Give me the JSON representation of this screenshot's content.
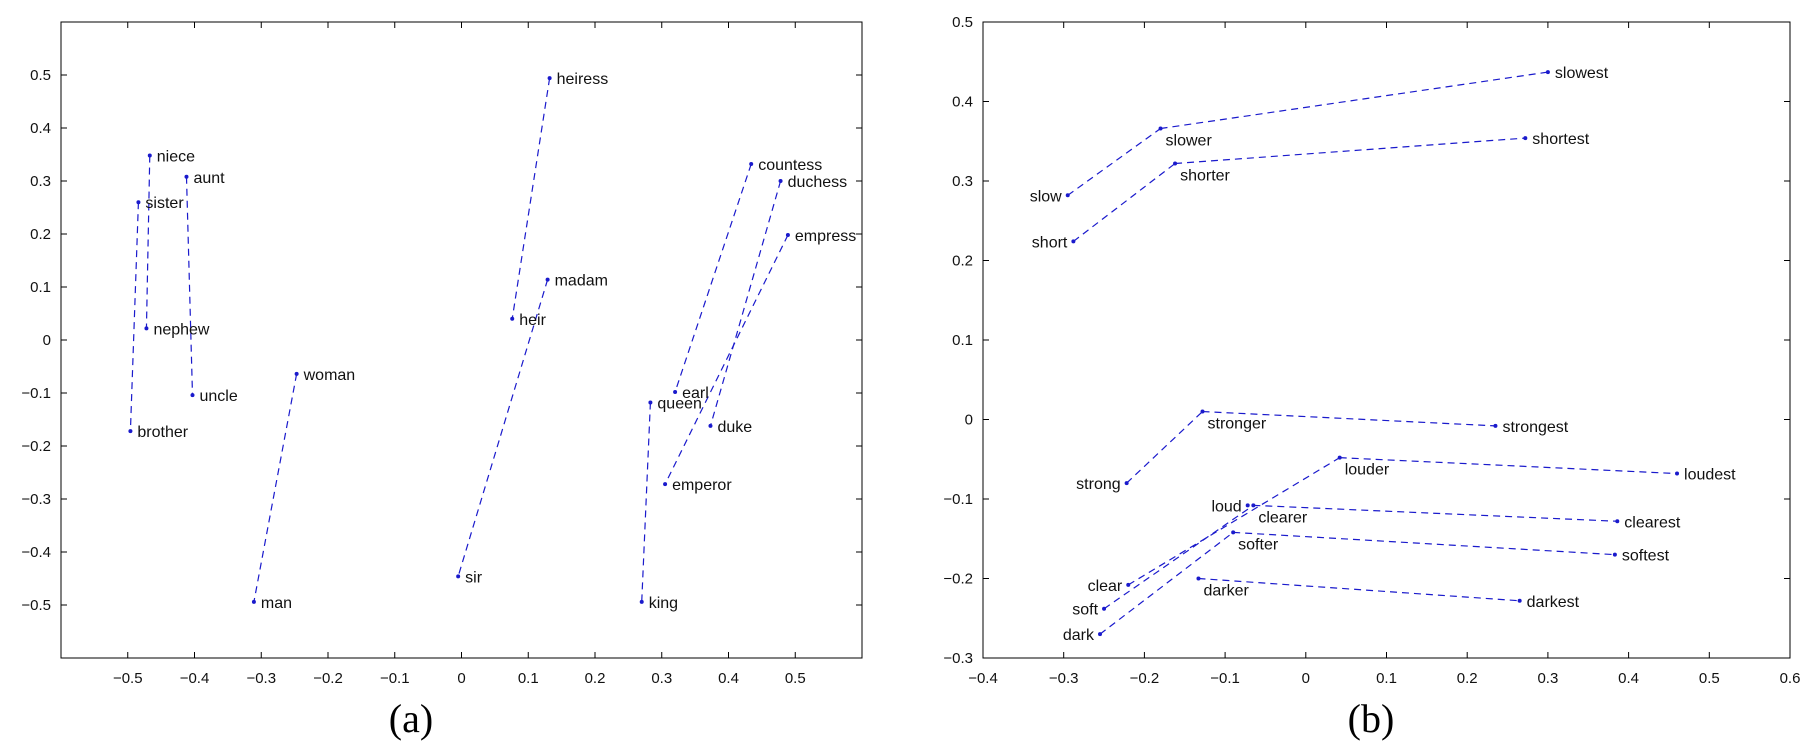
{
  "chart_data": [
    {
      "type": "scatter",
      "caption": "(a)",
      "xlim": [
        -0.6,
        0.6
      ],
      "ylim": [
        -0.6,
        0.6
      ],
      "xticks": [
        -0.5,
        -0.4,
        -0.3,
        -0.2,
        -0.1,
        0,
        0.1,
        0.2,
        0.3,
        0.4,
        0.5
      ],
      "xtick_labels": [
        "−0.5",
        "−0.4",
        "−0.3",
        "−0.2",
        "−0.1",
        "0",
        "0.1",
        "0.2",
        "0.3",
        "0.4",
        "0.5"
      ],
      "yticks": [
        -0.5,
        -0.4,
        -0.3,
        -0.2,
        -0.1,
        0,
        0.1,
        0.2,
        0.3,
        0.4,
        0.5
      ],
      "ytick_labels": [
        "−0.5",
        "−0.4",
        "−0.3",
        "−0.2",
        "−0.1",
        "0",
        "0.1",
        "0.2",
        "0.3",
        "0.4",
        "0.5"
      ],
      "points": [
        {
          "label": "niece",
          "x": -0.467,
          "y": 0.348,
          "pos": "right"
        },
        {
          "label": "aunt",
          "x": -0.412,
          "y": 0.308,
          "pos": "right"
        },
        {
          "label": "sister",
          "x": -0.484,
          "y": 0.26,
          "pos": "right"
        },
        {
          "label": "nephew",
          "x": -0.472,
          "y": 0.022,
          "pos": "right"
        },
        {
          "label": "uncle",
          "x": -0.403,
          "y": -0.104,
          "pos": "right"
        },
        {
          "label": "brother",
          "x": -0.496,
          "y": -0.172,
          "pos": "right"
        },
        {
          "label": "woman",
          "x": -0.247,
          "y": -0.064,
          "pos": "right"
        },
        {
          "label": "man",
          "x": -0.311,
          "y": -0.494,
          "pos": "right"
        },
        {
          "label": "heiress",
          "x": 0.132,
          "y": 0.494,
          "pos": "right"
        },
        {
          "label": "madam",
          "x": 0.129,
          "y": 0.114,
          "pos": "right"
        },
        {
          "label": "heir",
          "x": 0.076,
          "y": 0.04,
          "pos": "right"
        },
        {
          "label": "sir",
          "x": -0.005,
          "y": -0.446,
          "pos": "right"
        },
        {
          "label": "countess",
          "x": 0.434,
          "y": 0.332,
          "pos": "right"
        },
        {
          "label": "duchess",
          "x": 0.478,
          "y": 0.3,
          "pos": "right"
        },
        {
          "label": "empress",
          "x": 0.489,
          "y": 0.198,
          "pos": "right"
        },
        {
          "label": "earl",
          "x": 0.32,
          "y": -0.098,
          "pos": "right"
        },
        {
          "label": "queen",
          "x": 0.283,
          "y": -0.118,
          "pos": "right"
        },
        {
          "label": "duke",
          "x": 0.373,
          "y": -0.162,
          "pos": "right"
        },
        {
          "label": "emperor",
          "x": 0.305,
          "y": -0.272,
          "pos": "right"
        },
        {
          "label": "king",
          "x": 0.27,
          "y": -0.494,
          "pos": "right"
        }
      ],
      "segments": [
        [
          "niece",
          "nephew"
        ],
        [
          "aunt",
          "uncle"
        ],
        [
          "sister",
          "brother"
        ],
        [
          "woman",
          "man"
        ],
        [
          "heiress",
          "heir"
        ],
        [
          "madam",
          "sir"
        ],
        [
          "countess",
          "earl"
        ],
        [
          "duchess",
          "duke"
        ],
        [
          "empress",
          "emperor"
        ],
        [
          "queen",
          "king"
        ]
      ],
      "color": "#1a1acc"
    },
    {
      "type": "scatter",
      "caption": "(b)",
      "xlim": [
        -0.4,
        0.6
      ],
      "ylim": [
        -0.3,
        0.5
      ],
      "xticks": [
        -0.4,
        -0.3,
        -0.2,
        -0.1,
        0,
        0.1,
        0.2,
        0.3,
        0.4,
        0.5,
        0.6
      ],
      "xtick_labels": [
        "−0.4",
        "−0.3",
        "−0.2",
        "−0.1",
        "0",
        "0.1",
        "0.2",
        "0.3",
        "0.4",
        "0.5",
        "0.6"
      ],
      "yticks": [
        -0.3,
        -0.2,
        -0.1,
        0,
        0.1,
        0.2,
        0.3,
        0.4,
        0.5
      ],
      "ytick_labels": [
        "−0.3",
        "−0.2",
        "−0.1",
        "0",
        "0.1",
        "0.2",
        "0.3",
        "0.4",
        "0.5"
      ],
      "points": [
        {
          "label": "slow",
          "x": -0.295,
          "y": 0.282,
          "pos": "left"
        },
        {
          "label": "slower",
          "x": -0.18,
          "y": 0.366,
          "pos": "below-right"
        },
        {
          "label": "slowest",
          "x": 0.3,
          "y": 0.437,
          "pos": "right"
        },
        {
          "label": "short",
          "x": -0.288,
          "y": 0.224,
          "pos": "left"
        },
        {
          "label": "shorter",
          "x": -0.162,
          "y": 0.322,
          "pos": "below-right"
        },
        {
          "label": "shortest",
          "x": 0.272,
          "y": 0.354,
          "pos": "right"
        },
        {
          "label": "strong",
          "x": -0.222,
          "y": -0.08,
          "pos": "left"
        },
        {
          "label": "stronger",
          "x": -0.128,
          "y": 0.01,
          "pos": "below-right"
        },
        {
          "label": "strongest",
          "x": 0.235,
          "y": -0.008,
          "pos": "right"
        },
        {
          "label": "loud",
          "x": -0.072,
          "y": -0.108,
          "pos": "left"
        },
        {
          "label": "louder",
          "x": 0.042,
          "y": -0.048,
          "pos": "below-right"
        },
        {
          "label": "loudest",
          "x": 0.46,
          "y": -0.068,
          "pos": "right"
        },
        {
          "label": "clear",
          "x": -0.22,
          "y": -0.208,
          "pos": "left"
        },
        {
          "label": "clearer",
          "x": -0.065,
          "y": -0.108,
          "pos": "below-right"
        },
        {
          "label": "clearest",
          "x": 0.386,
          "y": -0.128,
          "pos": "right"
        },
        {
          "label": "soft",
          "x": -0.25,
          "y": -0.238,
          "pos": "left"
        },
        {
          "label": "softer",
          "x": -0.09,
          "y": -0.142,
          "pos": "below-right"
        },
        {
          "label": "softest",
          "x": 0.383,
          "y": -0.17,
          "pos": "right"
        },
        {
          "label": "dark",
          "x": -0.255,
          "y": -0.27,
          "pos": "left"
        },
        {
          "label": "darker",
          "x": -0.133,
          "y": -0.2,
          "pos": "below-right"
        },
        {
          "label": "darkest",
          "x": 0.265,
          "y": -0.228,
          "pos": "right"
        }
      ],
      "segments": [
        [
          "slow",
          "slower"
        ],
        [
          "slower",
          "slowest"
        ],
        [
          "short",
          "shorter"
        ],
        [
          "shorter",
          "shortest"
        ],
        [
          "strong",
          "stronger"
        ],
        [
          "stronger",
          "strongest"
        ],
        [
          "clear",
          "louder"
        ],
        [
          "louder",
          "loudest"
        ],
        [
          "soft",
          "clearer"
        ],
        [
          "clearer",
          "clearest"
        ],
        [
          "dark",
          "softer"
        ],
        [
          "softer",
          "softest"
        ],
        [
          "darker",
          "darkest"
        ]
      ],
      "color": "#1a1acc"
    }
  ]
}
